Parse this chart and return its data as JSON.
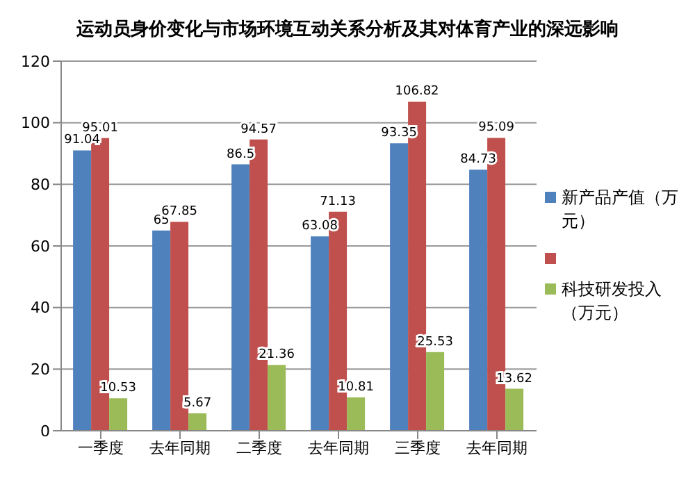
{
  "chart_data": {
    "type": "bar",
    "title": "运动员身价变化与市场环境互动关系分析及其对体育产业的深远影响",
    "categories": [
      "一季度",
      "去年同期",
      "二季度",
      "去年同期",
      "三季度",
      "去年同期"
    ],
    "series": [
      {
        "name": "新产品产值（万元）",
        "color": "#4f81bd",
        "values": [
          91.04,
          65,
          86.5,
          63.08,
          93.35,
          84.73
        ]
      },
      {
        "color": "#c0504d",
        "values": [
          95.01,
          67.85,
          94.57,
          71.13,
          106.82,
          95.09
        ]
      },
      {
        "name": "科技研发投入（万元）",
        "color": "#9bbb59",
        "values": [
          10.53,
          5.67,
          21.36,
          10.81,
          25.53,
          13.62
        ]
      }
    ],
    "ylim": [
      0,
      120
    ],
    "yticks": [
      0,
      20,
      40,
      60,
      80,
      100,
      120
    ],
    "grid": "y",
    "legend": "right",
    "data_labels": true
  }
}
